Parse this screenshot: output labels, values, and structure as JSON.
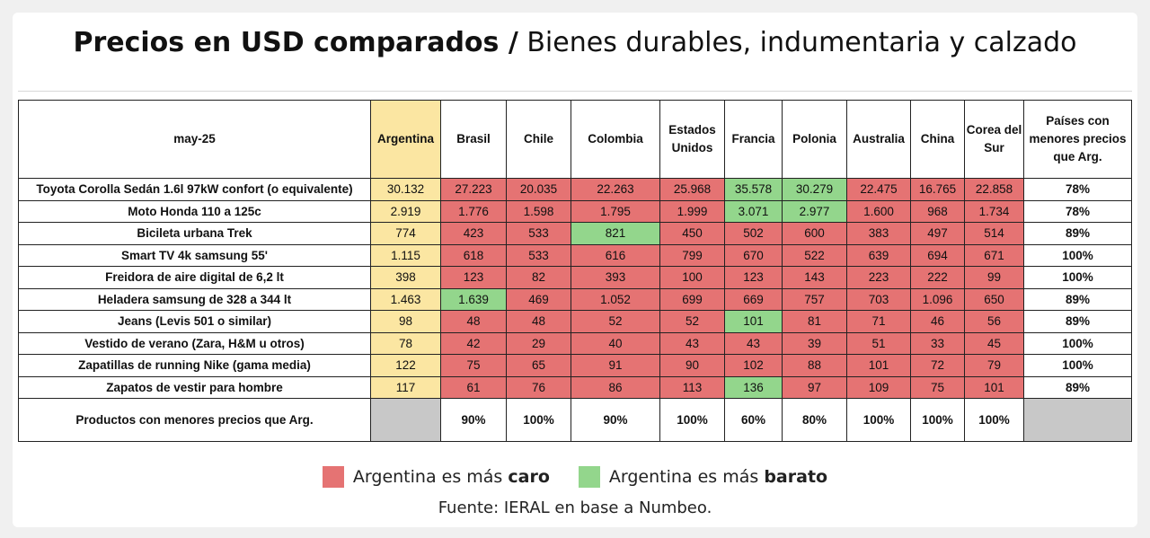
{
  "title": {
    "bold": "Precios en USD comparados /",
    "light": "Bienes durables, indumentaria y calzado"
  },
  "colors": {
    "argentina_column": "#fbe6a2",
    "more_expensive": "#e57373",
    "cheaper": "#93d68c",
    "empty": "#c8c8c8"
  },
  "chart_data": {
    "type": "table",
    "period": "may-25",
    "columns": [
      "Argentina",
      "Brasil",
      "Chile",
      "Colombia",
      "Estados Unidos",
      "Francia",
      "Polonia",
      "Australia",
      "China",
      "Corea del Sur"
    ],
    "last_column": "Países con menores precios que Arg.",
    "rows": [
      {
        "product": "Toyota Corolla Sedán 1.6l 97kW confort (o equivalente)",
        "values": [
          "30.132",
          "27.223",
          "20.035",
          "22.263",
          "25.968",
          "35.578",
          "30.279",
          "22.475",
          "16.765",
          "22.858"
        ],
        "status": [
          "arg",
          "red",
          "red",
          "red",
          "red",
          "green",
          "green",
          "red",
          "red",
          "red"
        ],
        "share": "78%"
      },
      {
        "product": "Moto Honda 110 a 125c",
        "values": [
          "2.919",
          "1.776",
          "1.598",
          "1.795",
          "1.999",
          "3.071",
          "2.977",
          "1.600",
          "968",
          "1.734"
        ],
        "status": [
          "arg",
          "red",
          "red",
          "red",
          "red",
          "green",
          "green",
          "red",
          "red",
          "red"
        ],
        "share": "78%"
      },
      {
        "product": "Bicileta urbana Trek",
        "values": [
          "774",
          "423",
          "533",
          "821",
          "450",
          "502",
          "600",
          "383",
          "497",
          "514"
        ],
        "status": [
          "arg",
          "red",
          "red",
          "green",
          "red",
          "red",
          "red",
          "red",
          "red",
          "red"
        ],
        "share": "89%"
      },
      {
        "product": "Smart TV 4k samsung 55'",
        "values": [
          "1.115",
          "618",
          "533",
          "616",
          "799",
          "670",
          "522",
          "639",
          "694",
          "671"
        ],
        "status": [
          "arg",
          "red",
          "red",
          "red",
          "red",
          "red",
          "red",
          "red",
          "red",
          "red"
        ],
        "share": "100%"
      },
      {
        "product": "Freidora de aire digital de 6,2 lt",
        "values": [
          "398",
          "123",
          "82",
          "393",
          "100",
          "123",
          "143",
          "223",
          "222",
          "99"
        ],
        "status": [
          "arg",
          "red",
          "red",
          "red",
          "red",
          "red",
          "red",
          "red",
          "red",
          "red"
        ],
        "share": "100%"
      },
      {
        "product": "Heladera samsung de 328 a 344 lt",
        "values": [
          "1.463",
          "1.639",
          "469",
          "1.052",
          "699",
          "669",
          "757",
          "703",
          "1.096",
          "650"
        ],
        "status": [
          "arg",
          "green",
          "red",
          "red",
          "red",
          "red",
          "red",
          "red",
          "red",
          "red"
        ],
        "share": "89%"
      },
      {
        "product": "Jeans (Levis 501 o similar)",
        "values": [
          "98",
          "48",
          "48",
          "52",
          "52",
          "101",
          "81",
          "71",
          "46",
          "56"
        ],
        "status": [
          "arg",
          "red",
          "red",
          "red",
          "red",
          "green",
          "red",
          "red",
          "red",
          "red"
        ],
        "share": "89%"
      },
      {
        "product": "Vestido de verano (Zara, H&M u otros)",
        "values": [
          "78",
          "42",
          "29",
          "40",
          "43",
          "43",
          "39",
          "51",
          "33",
          "45"
        ],
        "status": [
          "arg",
          "red",
          "red",
          "red",
          "red",
          "red",
          "red",
          "red",
          "red",
          "red"
        ],
        "share": "100%"
      },
      {
        "product": "Zapatillas de running Nike (gama media)",
        "values": [
          "122",
          "75",
          "65",
          "91",
          "90",
          "102",
          "88",
          "101",
          "72",
          "79"
        ],
        "status": [
          "arg",
          "red",
          "red",
          "red",
          "red",
          "red",
          "red",
          "red",
          "red",
          "red"
        ],
        "share": "100%"
      },
      {
        "product": "Zapatos de vestir para hombre",
        "values": [
          "117",
          "61",
          "76",
          "86",
          "113",
          "136",
          "97",
          "109",
          "75",
          "101"
        ],
        "status": [
          "arg",
          "red",
          "red",
          "red",
          "red",
          "green",
          "red",
          "red",
          "red",
          "red"
        ],
        "share": "89%"
      }
    ],
    "footer": {
      "label": "Productos con menores precios que Arg.",
      "values": [
        "",
        "90%",
        "100%",
        "90%",
        "100%",
        "60%",
        "80%",
        "100%",
        "100%",
        "100%"
      ],
      "share": ""
    }
  },
  "legend": {
    "caro_prefix": "Argentina es más",
    "caro_bold": "caro",
    "barato_prefix": "Argentina es más",
    "barato_bold": "barato"
  },
  "source": "Fuente: IERAL en base a Numbeo."
}
